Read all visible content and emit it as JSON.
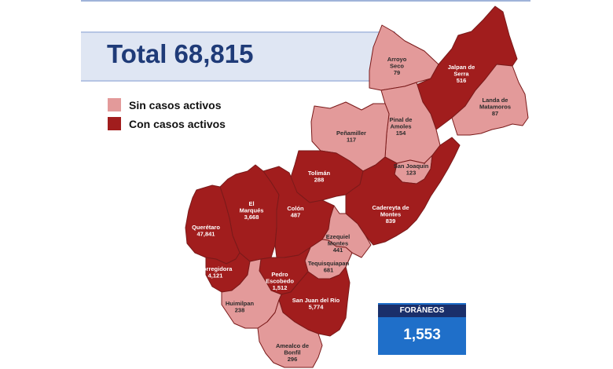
{
  "total": {
    "text": "Total 68,815"
  },
  "legend": [
    {
      "label": "Sin casos activos",
      "color": "#e39a9a"
    },
    {
      "label": "Con casos activos",
      "color": "#a11d1d"
    }
  ],
  "municipalities": [
    {
      "name_lines": [
        "Arroyo",
        "Seco"
      ],
      "value": "79",
      "active": false
    },
    {
      "name_lines": [
        "Jalpan de",
        "Serra"
      ],
      "value": "516",
      "active": true
    },
    {
      "name_lines": [
        "Landa de",
        "Matamoros"
      ],
      "value": "87",
      "active": false
    },
    {
      "name_lines": [
        "Pinal de",
        "Amoles"
      ],
      "value": "154",
      "active": false
    },
    {
      "name_lines": [
        "Peñamiller"
      ],
      "value": "117",
      "active": false
    },
    {
      "name_lines": [
        "San Joaquín"
      ],
      "value": "123",
      "active": false
    },
    {
      "name_lines": [
        "Tolimán"
      ],
      "value": "288",
      "active": true
    },
    {
      "name_lines": [
        "Cadereyta de",
        "Montes"
      ],
      "value": "839",
      "active": true
    },
    {
      "name_lines": [
        "El",
        "Marqués"
      ],
      "value": "3,668",
      "active": true
    },
    {
      "name_lines": [
        "Colón"
      ],
      "value": "487",
      "active": true
    },
    {
      "name_lines": [
        "Querétaro"
      ],
      "value": "47,841",
      "active": true
    },
    {
      "name_lines": [
        "Ezequiel",
        "Montes"
      ],
      "value": "441",
      "active": false
    },
    {
      "name_lines": [
        "Tequisquiapan"
      ],
      "value": "681",
      "active": false
    },
    {
      "name_lines": [
        "Corregidora"
      ],
      "value": "4,121",
      "active": true
    },
    {
      "name_lines": [
        "Pedro",
        "Escobedo"
      ],
      "value": "1,512",
      "active": true
    },
    {
      "name_lines": [
        "San Juan del Río"
      ],
      "value": "5,774",
      "active": true
    },
    {
      "name_lines": [
        "Huimilpan"
      ],
      "value": "238",
      "active": false
    },
    {
      "name_lines": [
        "Amealco de",
        "Bonfil"
      ],
      "value": "296",
      "active": false
    }
  ],
  "foraneos": {
    "title": "FORÁNEOS",
    "value": "1,553"
  },
  "colors": {
    "inactive": "#e39a9a",
    "active": "#a11d1d",
    "border": "#7a1a1a",
    "banner_text": "#1f3b78",
    "foraneos_box": "#1f6fc9"
  }
}
